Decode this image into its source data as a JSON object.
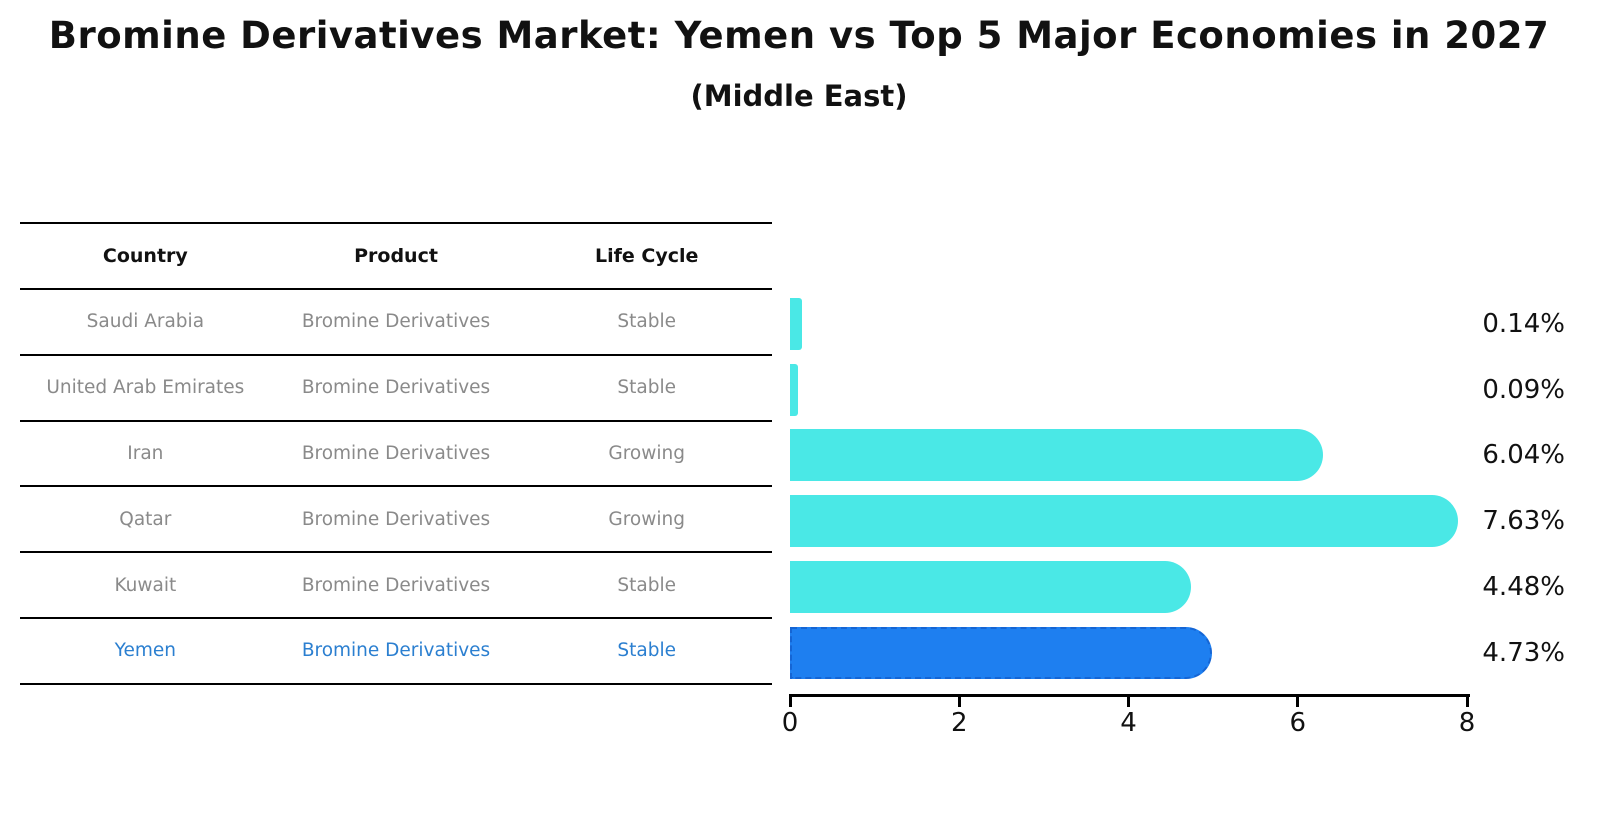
{
  "title": "Bromine Derivatives Market: Yemen vs Top 5 Major Economies in 2027",
  "subtitle": "(Middle East)",
  "table": {
    "headers": [
      "Country",
      "Product",
      "Life Cycle"
    ],
    "rows": [
      {
        "country": "Saudi Arabia",
        "product": "Bromine Derivatives",
        "life_cycle": "Stable",
        "value_label": "0.14%",
        "highlight": false
      },
      {
        "country": "United Arab Emirates",
        "product": "Bromine Derivatives",
        "life_cycle": "Stable",
        "value_label": "0.09%",
        "highlight": false
      },
      {
        "country": "Iran",
        "product": "Bromine Derivatives",
        "life_cycle": "Growing",
        "value_label": "6.04%",
        "highlight": false
      },
      {
        "country": "Qatar",
        "product": "Bromine Derivatives",
        "life_cycle": "Growing",
        "value_label": "7.63%",
        "highlight": false
      },
      {
        "country": "Kuwait",
        "product": "Bromine Derivatives",
        "life_cycle": "Stable",
        "value_label": "4.48%",
        "highlight": false
      },
      {
        "country": "Yemen",
        "product": "Bromine Derivatives",
        "life_cycle": "Stable",
        "value_label": "4.73%",
        "highlight": true
      }
    ]
  },
  "chart_data": {
    "type": "bar",
    "orientation": "horizontal",
    "title": "Bromine Derivatives Market: Yemen vs Top 5 Major Economies in 2027",
    "subtitle": "(Middle East)",
    "categories": [
      "Saudi Arabia",
      "United Arab Emirates",
      "Iran",
      "Qatar",
      "Kuwait",
      "Yemen"
    ],
    "values": [
      0.14,
      0.09,
      6.04,
      7.63,
      4.48,
      4.73
    ],
    "value_labels": [
      "0.14%",
      "0.09%",
      "6.04%",
      "7.63%",
      "4.48%",
      "4.73%"
    ],
    "xlabel": "",
    "ylabel": "",
    "xlim": [
      0,
      8
    ],
    "x_ticks": [
      0,
      2,
      4,
      6,
      8
    ],
    "grid": false,
    "legend": false,
    "bar_color": "#4ae8e6",
    "highlight_color": "#1e7ff0",
    "highlight_category": "Yemen"
  },
  "colors": {
    "background": "#ffffff",
    "axis": "#000000",
    "table_line": "#000000",
    "cell_text": "#8a8a8a",
    "header_text": "#111111",
    "highlight_text": "#2b7fd0"
  }
}
